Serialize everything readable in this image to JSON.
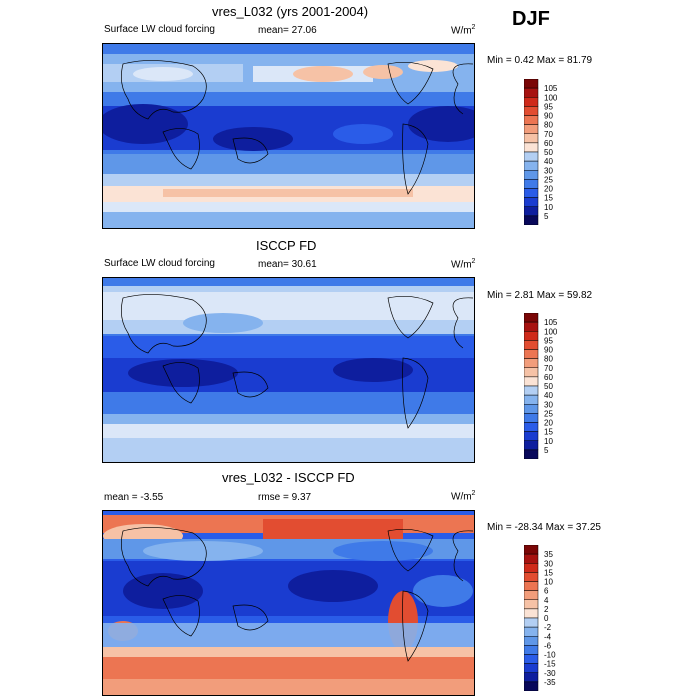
{
  "season": "DJF",
  "colors": {
    "seq": [
      "#08085a",
      "#0e1e9e",
      "#1a3cd0",
      "#2a5ce8",
      "#3f7ae8",
      "#5f97e8",
      "#85b3ee",
      "#b3cff3",
      "#dbe7f8",
      "#fbe3d5",
      "#f6c2a6",
      "#f29d7b",
      "#ec7552",
      "#e24d31",
      "#cf2a1a",
      "#a71210",
      "#7a0606"
    ],
    "diff": [
      "#08085a",
      "#0e1e9e",
      "#1a3cd0",
      "#2a5ce8",
      "#3f7ae8",
      "#5f97e8",
      "#85b3ee",
      "#b3cff3",
      "#dbe7f8",
      "#fbe3d5",
      "#f6c2a6",
      "#f29d7b",
      "#ec7552",
      "#e24d31",
      "#cf2a1a",
      "#a71210",
      "#7a0606"
    ]
  },
  "panels": [
    {
      "title": "vres_L032 (yrs 2001-2004)",
      "left_label": "Surface LW cloud forcing",
      "center_label": "mean=  27.06",
      "units": "W/m",
      "units_sup": "2",
      "minmax": "Min =   0.42 Max =  81.79",
      "scale": "seq"
    },
    {
      "title": "ISCCP FD",
      "left_label": "Surface LW cloud forcing",
      "center_label": "mean=  30.61",
      "units": "W/m",
      "units_sup": "2",
      "minmax": "Min =   2.81 Max =  59.82",
      "scale": "seq"
    },
    {
      "title": "vres_L032 - ISCCP FD",
      "left_label": "mean =  -3.55",
      "center_label": "rmse =   9.37",
      "units": "W/m",
      "units_sup": "2",
      "minmax": "Min = -28.34 Max =  37.25",
      "scale": "diff"
    }
  ],
  "chart_data": [
    {
      "type": "heatmap",
      "title": "vres_L032 (yrs 2001-2004)",
      "field": "Surface LW cloud forcing",
      "units": "W/m2",
      "mean": 27.06,
      "min": 0.42,
      "max": 81.79,
      "colorbar_levels": [
        5,
        10,
        15,
        20,
        25,
        30,
        40,
        50,
        60,
        70,
        80,
        90,
        95,
        100,
        105
      ],
      "colorbar_labels": [
        "105",
        "100",
        "95",
        "90",
        "80",
        "70",
        "60",
        "50",
        "40",
        "30",
        "25",
        "20",
        "15",
        "10",
        "5"
      ]
    },
    {
      "type": "heatmap",
      "title": "ISCCP FD",
      "field": "Surface LW cloud forcing",
      "units": "W/m2",
      "mean": 30.61,
      "min": 2.81,
      "max": 59.82,
      "colorbar_levels": [
        5,
        10,
        15,
        20,
        25,
        30,
        40,
        50,
        60,
        70,
        80,
        90,
        95,
        100,
        105
      ],
      "colorbar_labels": [
        "105",
        "100",
        "95",
        "90",
        "80",
        "70",
        "60",
        "50",
        "40",
        "30",
        "25",
        "20",
        "15",
        "10",
        "5"
      ]
    },
    {
      "type": "heatmap",
      "title": "vres_L032 - ISCCP FD",
      "units": "W/m2",
      "mean": -3.55,
      "rmse": 9.37,
      "min": -28.34,
      "max": 37.25,
      "colorbar_levels": [
        -35,
        -30,
        -15,
        -10,
        -6,
        -4,
        -2,
        0,
        2,
        4,
        6,
        10,
        15,
        30,
        35
      ],
      "colorbar_labels": [
        "35",
        "30",
        "15",
        "10",
        "6",
        "4",
        "2",
        "0",
        "-2",
        "-4",
        "-6",
        "-10",
        "-15",
        "-30",
        "-35"
      ]
    }
  ]
}
